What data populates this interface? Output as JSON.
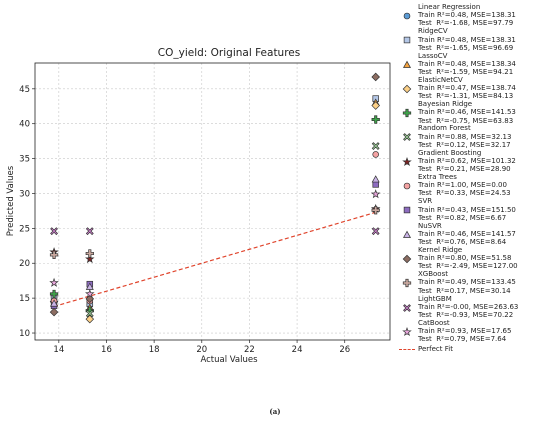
{
  "caption": "(a)",
  "chart_data": {
    "type": "scatter",
    "title": "CO_yield: Original Features",
    "xlabel": "Actual Values",
    "ylabel": "Predicted Values",
    "xlim": [
      13.0,
      27.9
    ],
    "ylim": [
      9.0,
      48.7
    ],
    "xticks": [
      14,
      16,
      18,
      20,
      22,
      24,
      26
    ],
    "yticks": [
      10,
      15,
      20,
      25,
      30,
      35,
      40,
      45
    ],
    "grid": true,
    "legend_position": "outside-right",
    "reference_line": {
      "name": "Perfect Fit",
      "x": [
        13.8,
        27.3
      ],
      "y": [
        13.8,
        27.3
      ],
      "color": "#e0442c",
      "style": "dashed"
    },
    "series": [
      {
        "name": "Linear Regression",
        "label": [
          "Linear Regression",
          "Train R²=0.48, MSE=138.31",
          "Test  R²=-1.68, MSE=97.79"
        ],
        "marker": "circle",
        "color": "#5b9bd5",
        "x": [
          13.8,
          15.3,
          27.3
        ],
        "y": [
          15.2,
          14.0,
          43.4
        ]
      },
      {
        "name": "RidgeCV",
        "label": [
          "RidgeCV",
          "Train R²=0.48, MSE=138.31",
          "Test  R²=-1.65, MSE=96.69"
        ],
        "marker": "square",
        "color": "#b4c7e7",
        "x": [
          13.8,
          15.3,
          27.3
        ],
        "y": [
          15.0,
          14.2,
          43.6
        ]
      },
      {
        "name": "LassoCV",
        "label": [
          "LassoCV",
          "Train R²=0.48, MSE=138.34",
          "Test  R²=-1.59, MSE=94.21"
        ],
        "marker": "triangle",
        "color": "#f4a340",
        "x": [
          13.8,
          15.3,
          27.3
        ],
        "y": [
          14.8,
          13.6,
          43.0
        ]
      },
      {
        "name": "ElasticNetCV",
        "label": [
          "ElasticNetCV",
          "Train R²=0.47, MSE=138.74",
          "Test  R²=-1.31, MSE=84.13"
        ],
        "marker": "diamond",
        "color": "#fcd087",
        "x": [
          13.8,
          15.3,
          27.3
        ],
        "y": [
          14.5,
          12.0,
          42.6
        ]
      },
      {
        "name": "Bayesian Ridge",
        "label": [
          "Bayesian Ridge",
          "Train R²=0.46, MSE=141.53",
          "Test  R²=-0.75, MSE=63.83"
        ],
        "marker": "plus",
        "color": "#3ea34a",
        "x": [
          13.8,
          15.3,
          27.3
        ],
        "y": [
          15.6,
          13.2,
          40.6
        ]
      },
      {
        "name": "Random Forest",
        "label": [
          "Random Forest",
          "Train R²=0.88, MSE=32.13",
          "Test  R²=0.12, MSE=32.17"
        ],
        "marker": "x",
        "color": "#9ed39a",
        "x": [
          13.8,
          15.3,
          27.3
        ],
        "y": [
          14.2,
          12.8,
          36.8
        ]
      },
      {
        "name": "Gradient Boosting",
        "label": [
          "Gradient Boosting",
          "Train R²=0.62, MSE=101.32",
          "Test  R²=0.21, MSE=28.90"
        ],
        "marker": "star",
        "color": "#7b2424",
        "x": [
          13.8,
          15.3,
          27.3
        ],
        "y": [
          21.6,
          20.6,
          27.8
        ]
      },
      {
        "name": "Extra Trees",
        "label": [
          "Extra Trees",
          "Train R²=1.00, MSE=0.00",
          "Test  R²=0.33, MSE=24.53"
        ],
        "marker": "circle",
        "color": "#f4a3a3",
        "x": [
          13.8,
          15.3,
          27.3
        ],
        "y": [
          14.6,
          14.6,
          35.6
        ]
      },
      {
        "name": "SVR",
        "label": [
          "SVR",
          "Train R²=0.43, MSE=151.50",
          "Test  R²=0.82, MSE=6.67"
        ],
        "marker": "square",
        "color": "#8d6cc0",
        "x": [
          13.8,
          15.3,
          27.3
        ],
        "y": [
          13.9,
          17.0,
          31.3
        ]
      },
      {
        "name": "NuSVR",
        "label": [
          "NuSVR",
          "Train R²=0.46, MSE=141.57",
          "Test  R²=0.76, MSE=8.64"
        ],
        "marker": "triangle",
        "color": "#c9b3e6",
        "x": [
          13.8,
          15.3,
          27.3
        ],
        "y": [
          14.2,
          16.6,
          32.0
        ]
      },
      {
        "name": "Kernel Ridge",
        "label": [
          "Kernel Ridge",
          "Train R²=0.80, MSE=51.58",
          "Test  R²=-2.49, MSE=127.00"
        ],
        "marker": "diamond",
        "color": "#8c6d62",
        "x": [
          13.8,
          15.3,
          27.3
        ],
        "y": [
          13.0,
          14.9,
          46.7
        ]
      },
      {
        "name": "XGBoost",
        "label": [
          "XGBoost",
          "Train R²=0.49, MSE=133.45",
          "Test  R²=0.17, MSE=30.14"
        ],
        "marker": "plus",
        "color": "#c9a89f",
        "x": [
          13.8,
          15.3,
          27.3
        ],
        "y": [
          21.2,
          21.4,
          27.6
        ]
      },
      {
        "name": "LightGBM",
        "label": [
          "LightGBM",
          "Train R²=-0.00, MSE=263.63",
          "Test  R²=-0.93, MSE=70.22"
        ],
        "marker": "x",
        "color": "#c77cc7",
        "x": [
          13.8,
          15.3,
          27.3
        ],
        "y": [
          24.6,
          24.6,
          24.6
        ]
      },
      {
        "name": "CatBoost",
        "label": [
          "CatBoost",
          "Train R²=0.93, MSE=17.65",
          "Test  R²=0.79, MSE=7.64"
        ],
        "marker": "star",
        "color": "#e8a6dc",
        "x": [
          13.8,
          15.3,
          27.3
        ],
        "y": [
          17.2,
          15.6,
          29.9
        ]
      }
    ]
  }
}
